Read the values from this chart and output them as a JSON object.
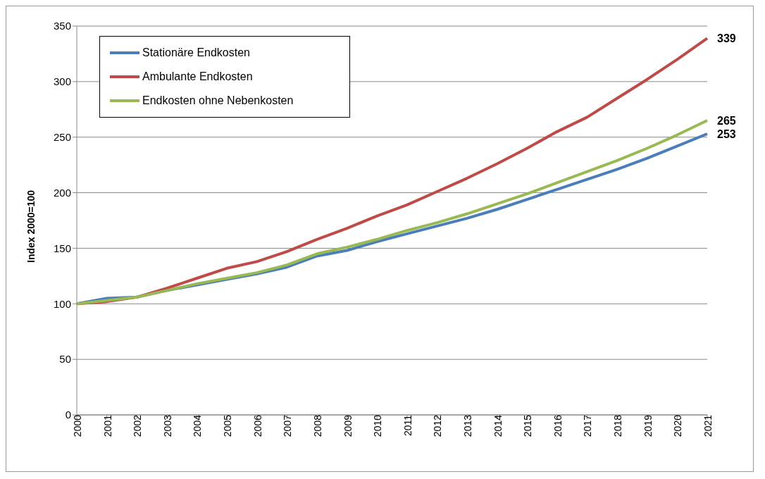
{
  "chart_data": {
    "type": "line",
    "ylabel": "Index 2000=100",
    "categories": [
      "2000",
      "2001",
      "2002",
      "2003",
      "2004",
      "2005",
      "2006",
      "2007",
      "2008",
      "2009",
      "2010",
      "2011",
      "2012",
      "2013",
      "2014",
      "2015",
      "2016",
      "2017",
      "2018",
      "2019",
      "2020",
      "2021"
    ],
    "series": [
      {
        "name": "Stationäre Endkosten",
        "color": "#4a7ebb",
        "values": [
          100,
          105,
          106,
          112,
          117,
          122,
          127,
          133,
          143,
          148,
          156,
          163,
          170,
          177,
          185,
          194,
          203,
          212,
          221,
          231,
          242,
          253
        ],
        "value_labels": [
          null,
          null,
          null,
          null,
          null,
          null,
          null,
          null,
          null,
          null,
          null,
          null,
          null,
          null,
          null,
          null,
          null,
          null,
          null,
          null,
          null,
          "253"
        ]
      },
      {
        "name": "Ambulante Endkosten",
        "color": "#be4b48",
        "values": [
          100,
          102,
          106,
          114,
          123,
          132,
          138,
          147,
          158,
          168,
          179,
          189,
          201,
          213,
          226,
          240,
          255,
          268,
          285,
          302,
          320,
          339
        ],
        "value_labels": [
          null,
          null,
          null,
          null,
          null,
          null,
          null,
          null,
          null,
          null,
          null,
          null,
          null,
          null,
          null,
          null,
          null,
          null,
          null,
          null,
          null,
          "339"
        ]
      },
      {
        "name": "Endkosten ohne Nebenkosten",
        "color": "#98b954",
        "values": [
          100,
          103,
          106,
          112,
          118,
          123,
          128,
          135,
          145,
          151,
          158,
          166,
          173,
          181,
          190,
          199,
          209,
          219,
          229,
          240,
          252,
          265
        ],
        "value_labels": [
          null,
          null,
          null,
          null,
          null,
          null,
          null,
          null,
          null,
          null,
          null,
          null,
          null,
          null,
          null,
          null,
          null,
          null,
          null,
          null,
          null,
          "265"
        ]
      }
    ],
    "ylim": [
      0,
      350
    ],
    "yticks": [
      0,
      50,
      100,
      150,
      200,
      250,
      300,
      350
    ],
    "grid": "y",
    "legend": "top left",
    "marker": "none",
    "line_style": "solid"
  }
}
